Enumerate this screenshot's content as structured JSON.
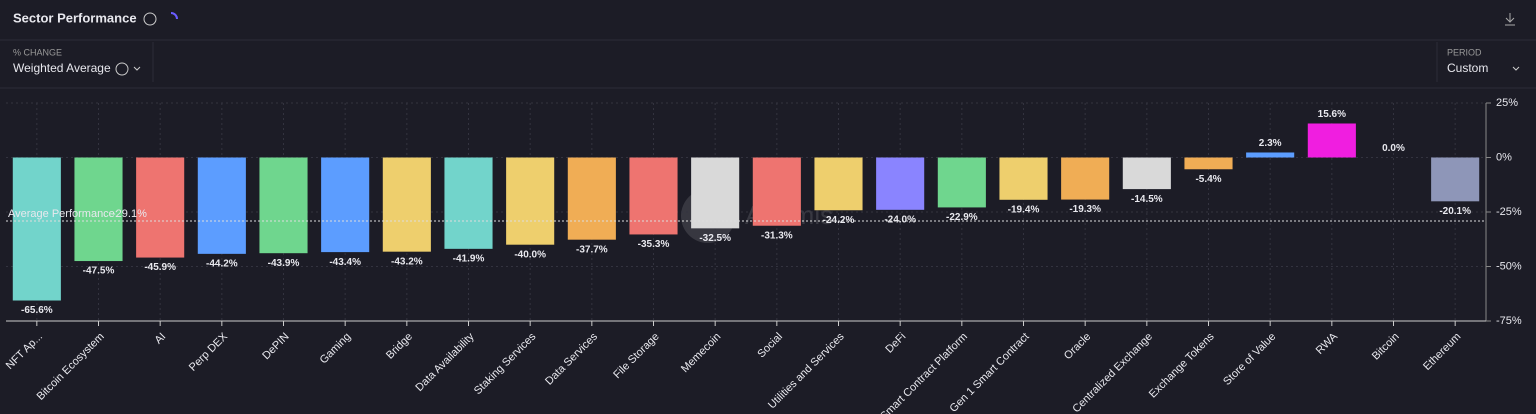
{
  "header": {
    "title": "Sector Performance",
    "metric_label": "% CHANGE",
    "metric_value": "Weighted Average",
    "period_label": "PERIOD",
    "period_value": "Custom"
  },
  "watermark": "Artemis",
  "chart_data": {
    "type": "bar",
    "categories": [
      "NFT Ap...",
      "Bitcoin Ecosystem",
      "AI",
      "Perp DEX",
      "DePIN",
      "Gaming",
      "Bridge",
      "Data Availability",
      "Staking Services",
      "Data Services",
      "File Storage",
      "Memecoin",
      "Social",
      "Utilities and Services",
      "DeFi",
      "Smart Contract Platform",
      "Gen 1 Smart Contract",
      "Oracle",
      "Centralized Exchange",
      "Exchange Tokens",
      "Store of Value",
      "RWA",
      "Bitcoin",
      "Ethereum"
    ],
    "values": [
      -65.6,
      -47.5,
      -45.9,
      -44.2,
      -43.9,
      -43.4,
      -43.2,
      -41.9,
      -40.0,
      -37.7,
      -35.3,
      -32.5,
      -31.3,
      -24.2,
      -24.0,
      -22.9,
      -19.4,
      -19.3,
      -14.5,
      -5.4,
      2.3,
      15.6,
      0.0,
      -20.1
    ],
    "value_labels": [
      "-65.6%",
      "-47.5%",
      "-45.9%",
      "-44.2%",
      "-43.9%",
      "-43.4%",
      "-43.2%",
      "-41.9%",
      "-40.0%",
      "-37.7%",
      "-35.3%",
      "-32.5%",
      "-31.3%",
      "-24.2%",
      "-24.0%",
      "-22.9%",
      "-19.4%",
      "-19.3%",
      "-14.5%",
      "-5.4%",
      "2.3%",
      "15.6%",
      "0.0%",
      "-20.1%"
    ],
    "colors": [
      "#72d4cb",
      "#6fd68e",
      "#ee7470",
      "#5c9dff",
      "#6fd68e",
      "#5c9dff",
      "#eecf6d",
      "#72d4cb",
      "#eecf6d",
      "#f0ad55",
      "#ee7470",
      "#d9d9d9",
      "#ee7470",
      "#eecf6d",
      "#8a84ff",
      "#6fd68e",
      "#eecf6d",
      "#f0ad55",
      "#d9d9d9",
      "#f0ad55",
      "#5c9dff",
      "#f01ee0",
      "#f0ad55",
      "#8e96b8"
    ],
    "ylim": [
      -75,
      25
    ],
    "yticks": [
      {
        "value": 25,
        "label": "25%"
      },
      {
        "value": 0,
        "label": "0%"
      },
      {
        "value": -25,
        "label": "-25%"
      },
      {
        "value": -50,
        "label": "-50%"
      },
      {
        "value": -75,
        "label": "-75%"
      }
    ],
    "grid": true,
    "average": {
      "label": "Average Performance:",
      "value": -29.1,
      "value_label": "-29.1%"
    }
  }
}
